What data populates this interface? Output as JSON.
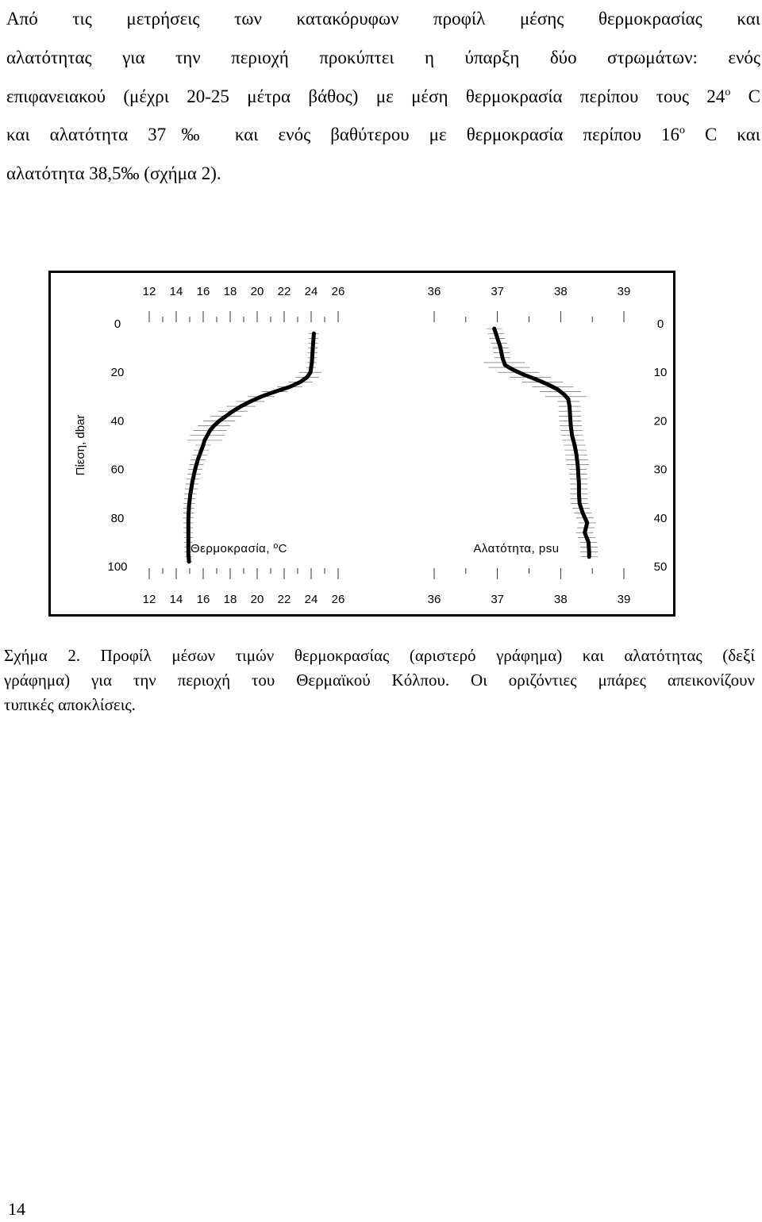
{
  "intro": {
    "lines": [
      "Από τις μετρήσεις των κατακόρυφων προφίλ μέσης θερμοκρασίας και",
      "αλατότητας για την περιοχή προκύπτει η ύπαρξη δύο στρωμάτων: ενός",
      "επιφανειακού (μέχρι 20-25 μέτρα βάθος) με μέση θερμοκρασία περίπου τους 24",
      "και αλατότητα 37‰ και ενός βαθύτερου με θερμοκρασία περίπου 16",
      "αλατότητα 38,5‰ (σχήμα 2)."
    ],
    "line3_sup": "ο",
    "line3_tail": " C",
    "line4_sup": "ο",
    "line4_tail": " C και"
  },
  "chart_data": [
    {
      "type": "line",
      "title": "",
      "xlabel": "Θερμοκρασία, ºC",
      "ylabel": "Πίεση, dbar",
      "x_ticks": [
        "12",
        "14",
        "16",
        "18",
        "20",
        "22",
        "24",
        "26"
      ],
      "y_ticks": [
        "0",
        "20",
        "40",
        "60",
        "80",
        "100"
      ],
      "xlim": [
        12,
        26
      ],
      "ylim": [
        0,
        100
      ],
      "y_inverted": true,
      "error_bars": "horizontal",
      "series": [
        {
          "depth": [
            4,
            8,
            12,
            16,
            20,
            22,
            24,
            26,
            28,
            30,
            32,
            34,
            36,
            38,
            40,
            42,
            44,
            46,
            48,
            50,
            53,
            56,
            60,
            65,
            70,
            75,
            80,
            85,
            90,
            95,
            98
          ],
          "values": [
            24.2,
            24.15,
            24.1,
            24.05,
            23.95,
            23.7,
            23.2,
            22.4,
            21.3,
            20.3,
            19.5,
            18.8,
            18.2,
            17.7,
            17.2,
            16.8,
            16.5,
            16.3,
            16.1,
            16.0,
            15.8,
            15.6,
            15.4,
            15.2,
            15.05,
            14.95,
            14.9,
            14.9,
            14.9,
            14.9,
            14.95
          ]
        }
      ]
    },
    {
      "type": "line",
      "title": "",
      "xlabel": "Αλατότητα, psu",
      "ylabel": "",
      "x_ticks": [
        "36",
        "37",
        "38",
        "39"
      ],
      "y_ticks": [
        "0",
        "10",
        "20",
        "30",
        "40",
        "50"
      ],
      "xlim": [
        36,
        39
      ],
      "ylim": [
        0,
        50
      ],
      "y_inverted": true,
      "error_bars": "horizontal",
      "series": [
        {
          "depth": [
            1,
            3,
            5,
            7,
            8.5,
            9.5,
            10.5,
            11.5,
            12.5,
            13.5,
            14.5,
            15.5,
            17,
            19,
            21,
            23,
            25,
            27,
            29,
            31,
            33,
            35,
            37,
            39,
            41,
            43,
            45,
            47,
            48
          ],
          "values": [
            36.95,
            37.0,
            37.05,
            37.08,
            37.12,
            37.25,
            37.42,
            37.62,
            37.8,
            37.95,
            38.05,
            38.12,
            38.14,
            38.15,
            38.16,
            38.18,
            38.22,
            38.25,
            38.27,
            38.28,
            38.29,
            38.29,
            38.3,
            38.35,
            38.42,
            38.38,
            38.44,
            38.45,
            38.45
          ]
        }
      ]
    }
  ],
  "caption": {
    "lines": [
      "Σχήμα 2. Προφίλ μέσων τιμών θερμοκρασίας (αριστερό γράφημα) και αλατότητας (δεξί",
      "γράφημα) για την περιοχή του Θερμαϊκού Κόλπου. Οι οριζόντιες μπάρες απεικονίζουν",
      "τυπικές αποκλίσεις."
    ]
  },
  "page_number": "14"
}
